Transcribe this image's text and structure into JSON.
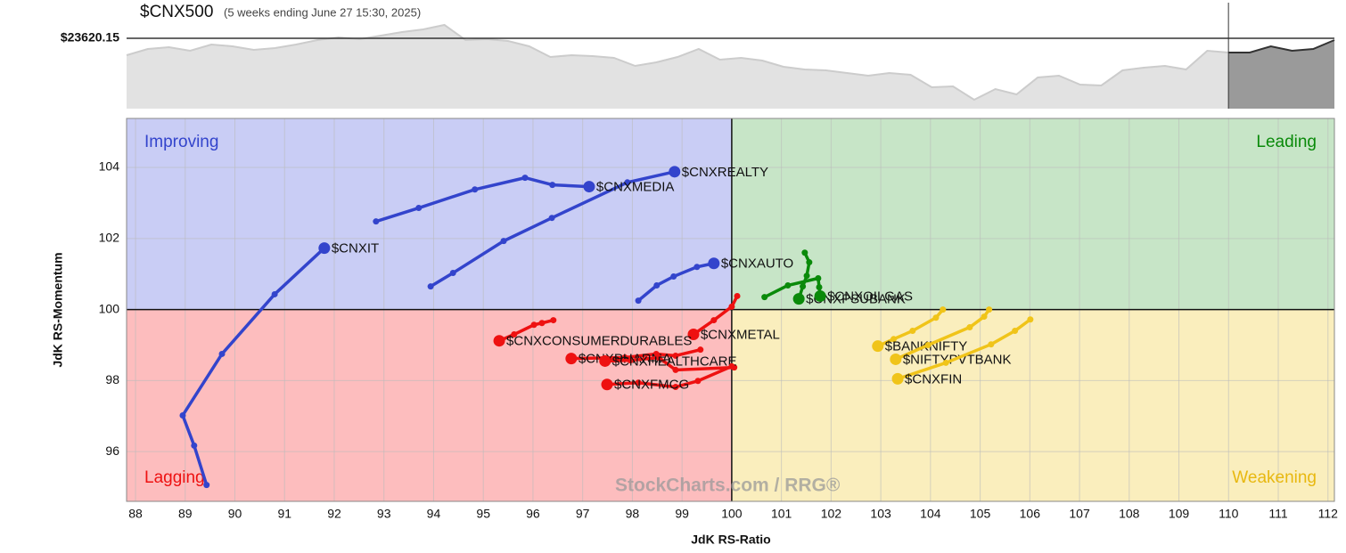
{
  "chart_data": [
    {
      "type": "area",
      "title": "$CNX500",
      "subtitle": "(5 weeks ending June 27 15:30, 2025)",
      "reference": {
        "value": 23620.15,
        "label": "$23620.15"
      },
      "ylim": [
        22830,
        24000
      ],
      "highlight_from": 52,
      "color": "#e2e2e2",
      "line_color": "#cccccc",
      "highlight_color": "#9a9a9a",
      "highlight_line_color": "#333333",
      "values": [
        23430,
        23500,
        23520,
        23480,
        23550,
        23530,
        23490,
        23510,
        23550,
        23600,
        23630,
        23610,
        23650,
        23690,
        23720,
        23770,
        23600,
        23610,
        23590,
        23530,
        23410,
        23430,
        23420,
        23400,
        23310,
        23350,
        23410,
        23500,
        23380,
        23400,
        23370,
        23300,
        23270,
        23260,
        23230,
        23200,
        23230,
        23210,
        23070,
        23080,
        22930,
        23050,
        22990,
        23180,
        23200,
        23100,
        23090,
        23260,
        23290,
        23310,
        23270,
        23480,
        23460,
        23460,
        23530,
        23480,
        23500,
        23600
      ]
    },
    {
      "type": "rrg",
      "x_label": "JdK RS-Ratio",
      "y_label": "JdK RS-Momentum",
      "watermark": "StockCharts.com / RRG®",
      "xlim": [
        87.82,
        112.13
      ],
      "ylim": [
        94.6,
        105.38
      ],
      "xticks": [
        88,
        89,
        90,
        91,
        92,
        93,
        94,
        95,
        96,
        97,
        98,
        99,
        100,
        101,
        102,
        103,
        104,
        105,
        106,
        107,
        108,
        109,
        110,
        111,
        112
      ],
      "yticks": [
        96,
        98,
        100,
        102,
        104
      ],
      "center": [
        100,
        100
      ],
      "grid": true,
      "quadrants": [
        {
          "name": "Improving",
          "color": "#c9cdf5",
          "label_color": "#3344cc"
        },
        {
          "name": "Leading",
          "color": "#c7e5c7",
          "label_color": "#0a8a0a"
        },
        {
          "name": "Lagging",
          "color": "#fdbdbe",
          "label_color": "#ee1111"
        },
        {
          "name": "Weakening",
          "color": "#faeebd",
          "label_color": "#e8b810"
        }
      ],
      "series": [
        {
          "name": "$CNXREALTY",
          "color": "#3344cc",
          "x": [
            93.94,
            94.39,
            95.41,
            96.38,
            97.9,
            98.85
          ],
          "y": [
            100.65,
            101.03,
            101.93,
            102.58,
            103.58,
            103.88
          ]
        },
        {
          "name": "$CNXMEDIA",
          "color": "#3344cc",
          "x": [
            92.84,
            93.7,
            94.83,
            95.84,
            96.39,
            97.13
          ],
          "y": [
            102.48,
            102.86,
            103.38,
            103.71,
            103.51,
            103.46
          ]
        },
        {
          "name": "$CNXIT",
          "color": "#3344cc",
          "x": [
            89.43,
            89.18,
            88.95,
            89.74,
            90.8,
            91.8
          ],
          "y": [
            95.06,
            96.17,
            97.02,
            98.75,
            100.43,
            101.73
          ]
        },
        {
          "name": "$CNXAUTO",
          "color": "#3344cc",
          "x": [
            98.12,
            98.49,
            98.83,
            99.3,
            99.64
          ],
          "y": [
            100.25,
            100.68,
            100.93,
            101.2,
            101.3
          ]
        },
        {
          "name": "$CNXPSUBANK",
          "color": "#0a8a0a",
          "x": [
            101.47,
            101.56,
            101.51,
            101.43,
            101.35
          ],
          "y": [
            101.6,
            101.33,
            100.95,
            100.65,
            100.3
          ]
        },
        {
          "name": "$CNXOILGAS",
          "color": "#0a8a0a",
          "x": [
            100.66,
            101.13,
            101.74,
            101.76,
            101.78
          ],
          "y": [
            100.35,
            100.68,
            100.88,
            100.63,
            100.38
          ]
        },
        {
          "name": "$CNXMETAL",
          "color": "#ee1111",
          "x": [
            100.11,
            100.0,
            99.64,
            99.23
          ],
          "y": [
            100.38,
            100.08,
            99.7,
            99.3
          ]
        },
        {
          "name": "$CNXCONSUMERDURABLES",
          "color": "#ee1111",
          "x": [
            96.41,
            96.18,
            96.02,
            95.62,
            95.32
          ],
          "y": [
            99.7,
            99.62,
            99.57,
            99.3,
            99.12
          ]
        },
        {
          "name": "$CNXPHARMA",
          "color": "#ee1111",
          "x": [
            99.37,
            98.87,
            98.48,
            97.85,
            96.77
          ],
          "y": [
            98.87,
            98.7,
            98.75,
            98.65,
            98.62
          ]
        },
        {
          "name": "$CNXHEALTHCARE",
          "color": "#ee1111",
          "x": [
            100.05,
            98.87,
            98.53,
            97.96,
            97.45
          ],
          "y": [
            98.37,
            98.3,
            98.65,
            98.57,
            98.55
          ]
        },
        {
          "name": "$CNXFMCG",
          "color": "#ee1111",
          "x": [
            100.0,
            99.32,
            98.87,
            98.12,
            97.49
          ],
          "y": [
            98.4,
            97.99,
            97.82,
            97.94,
            97.89
          ]
        },
        {
          "name": "$BANKNIFTY",
          "color": "#f0c419",
          "x": [
            104.25,
            104.11,
            103.64,
            103.26,
            102.94
          ],
          "y": [
            100.0,
            99.77,
            99.4,
            99.17,
            98.97
          ]
        },
        {
          "name": "$NIFTYPVTBANK",
          "color": "#f0c419",
          "x": [
            105.18,
            105.08,
            104.79,
            103.95,
            103.3
          ],
          "y": [
            100.0,
            99.8,
            99.5,
            99.0,
            98.6
          ]
        },
        {
          "name": "$CNXFIN",
          "color": "#f0c419",
          "x": [
            106.01,
            105.7,
            105.22,
            104.31,
            103.34
          ],
          "y": [
            99.72,
            99.4,
            99.02,
            98.5,
            98.05
          ]
        }
      ]
    }
  ]
}
